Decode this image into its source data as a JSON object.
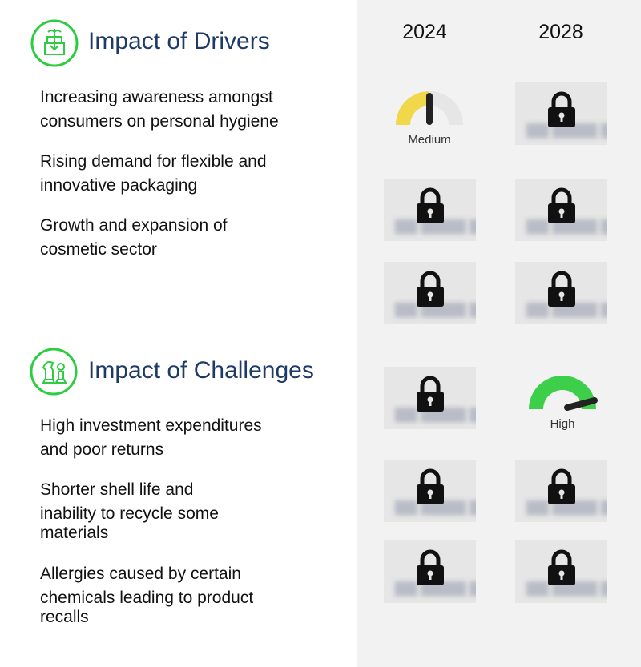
{
  "years": [
    "2024",
    "2028"
  ],
  "drivers": {
    "title": "Impact of Drivers",
    "icon": "growth-box-icon",
    "items": [
      [
        "Increasing awareness amongst",
        "consumers on personal hygiene"
      ],
      [
        "Rising demand for flexible and",
        "innovative packaging"
      ],
      [
        "Growth and expansion of",
        "cosmetic sector"
      ]
    ]
  },
  "challenges": {
    "title": "Impact of Challenges",
    "icon": "chess-pieces-icon",
    "items": [
      [
        "High investment expenditures",
        "and poor returns"
      ],
      [
        "Shorter shell life and",
        "inability to recycle some",
        "materials"
      ],
      [
        "Allergies caused by certain",
        "chemicals leading to product",
        "recalls"
      ]
    ]
  },
  "gauges": {
    "medium": {
      "label": "Medium",
      "color": "#f0d84a"
    },
    "high": {
      "label": "High",
      "color": "#3ecf4a"
    }
  },
  "colors": {
    "accent": "#2ecc40",
    "title": "#1e3a66",
    "panel": "#f2f2f2"
  }
}
